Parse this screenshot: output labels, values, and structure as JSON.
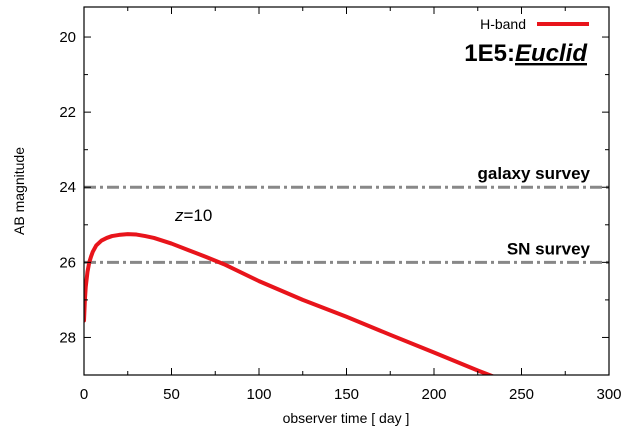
{
  "chart_data": {
    "type": "line",
    "title_prefix": "1E5:",
    "title_emph": "Euclid",
    "xlabel": "observer time [ day ]",
    "ylabel": "AB magnitude",
    "xlim": [
      0,
      300
    ],
    "ylim": [
      29,
      19.2
    ],
    "y_inverted": true,
    "grid": false,
    "legend_position": "top-right",
    "x_ticks": [
      0,
      50,
      100,
      150,
      200,
      250,
      300
    ],
    "y_ticks": [
      20,
      22,
      24,
      26,
      28
    ],
    "series": [
      {
        "name": "H-band",
        "color": "#e8141b",
        "x": [
          0,
          0.5,
          1,
          2,
          3,
          4,
          5,
          7,
          10,
          13,
          16,
          20,
          25,
          30,
          35,
          40,
          50,
          60,
          70,
          80,
          100,
          125,
          150,
          175,
          200,
          225,
          250
        ],
        "y": [
          27.55,
          27.0,
          26.65,
          26.25,
          26.0,
          25.85,
          25.72,
          25.55,
          25.42,
          25.35,
          25.3,
          25.27,
          25.25,
          25.26,
          25.3,
          25.35,
          25.5,
          25.68,
          25.86,
          26.05,
          26.5,
          27.0,
          27.45,
          27.93,
          28.4,
          28.88,
          29.33
        ]
      }
    ],
    "thresholds": [
      {
        "label": "galaxy survey",
        "y": 24.0,
        "color": "#888888"
      },
      {
        "label": "SN survey",
        "y": 26.0,
        "color": "#888888"
      }
    ],
    "annotations": [
      {
        "text_italic": "z",
        "text_rest": "=10",
        "x": 52,
        "y": 24.9
      }
    ]
  }
}
